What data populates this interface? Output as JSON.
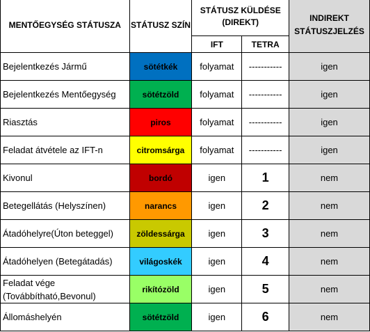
{
  "headers": {
    "status": "MENTŐEGYSÉG STÁTUSZA",
    "color": "STÁTUSZ SZÍN",
    "direct": "STÁTUSZ KÜLDÉSE (DIREKT)",
    "ift": "IFT",
    "tetra": "TETRA",
    "indirect": "INDIREKT STÁTUSZJELZÉS"
  },
  "colors": {
    "sotetkek": "#0070c0",
    "sotetzold": "#00b050",
    "piros": "#ff0000",
    "citromsarga": "#ffff00",
    "bordo": "#c00000",
    "narancs": "#ff9900",
    "zoldessarga": "#c9c900",
    "vilagoskek": "#33ccff",
    "rikitozold": "#99ff66",
    "indirect_bg": "#d9d9d9"
  },
  "rows": [
    {
      "status": "Bejelentkezés Jármű",
      "color_label": "sötétkék",
      "color_key": "sotetkek",
      "ift": "folyamat",
      "tetra": "-----------",
      "indirect": "igen"
    },
    {
      "status": "Bejelentkezés Mentőegység",
      "color_label": "sötétzöld",
      "color_key": "sotetzold",
      "ift": "folyamat",
      "tetra": "-----------",
      "indirect": "igen"
    },
    {
      "status": "Riasztás",
      "color_label": "piros",
      "color_key": "piros",
      "ift": "folyamat",
      "tetra": "-----------",
      "indirect": "igen"
    },
    {
      "status": "Feladat átvétele az IFT-n",
      "color_label": "citromsárga",
      "color_key": "citromsarga",
      "ift": "folyamat",
      "tetra": "-----------",
      "indirect": "igen"
    },
    {
      "status": "Kivonul",
      "color_label": "bordó",
      "color_key": "bordo",
      "ift": "igen",
      "tetra": "1",
      "indirect": "nem"
    },
    {
      "status": "Betegellátás (Helyszínen)",
      "color_label": "narancs",
      "color_key": "narancs",
      "ift": "igen",
      "tetra": "2",
      "indirect": "nem"
    },
    {
      "status": "Átadóhelyre(Úton beteggel)",
      "color_label": "zöldessárga",
      "color_key": "zoldessarga",
      "ift": "igen",
      "tetra": "3",
      "indirect": "nem"
    },
    {
      "status": "Átadóhelyen (Betegátadás)",
      "color_label": "világoskék",
      "color_key": "vilagoskek",
      "ift": "igen",
      "tetra": "4",
      "indirect": "nem"
    },
    {
      "status": "Feladat vége (Továbbítható,Bevonul)",
      "color_label": "rikítózöld",
      "color_key": "rikitozold",
      "ift": "igen",
      "tetra": "5",
      "indirect": "nem"
    },
    {
      "status": "Állomáshelyén",
      "color_label": "sötétzöld",
      "color_key": "sotetzold",
      "ift": "igen",
      "tetra": "6",
      "indirect": "nem"
    }
  ]
}
